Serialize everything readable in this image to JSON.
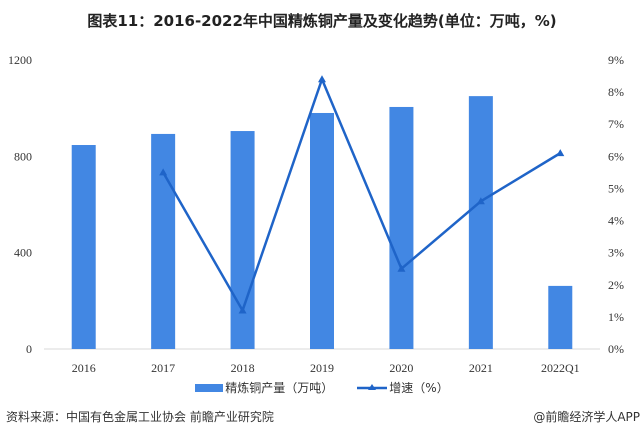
{
  "title": "图表11：2016-2022年中国精炼铜产量及变化趋势(单位：万吨，%)",
  "colors": {
    "bar": "#4287E3",
    "line": "#1F64C8",
    "axis": "#d9d9d9"
  },
  "legend": {
    "bar_label": "精炼铜产量（万吨）",
    "line_label": "增速（%）"
  },
  "footer": {
    "source": "资料来源：中国有色金属工业协会 前瞻产业研究院",
    "brand": "@前瞻经济学人APP"
  },
  "chart_data": {
    "type": "bar+line",
    "title": "图表11：2016-2022年中国精炼铜产量及变化趋势(单位：万吨，%)",
    "categories": [
      "2016",
      "2017",
      "2018",
      "2019",
      "2020",
      "2021",
      "2022Q1"
    ],
    "series": [
      {
        "name": "精炼铜产量（万吨）",
        "type": "bar",
        "axis": "left",
        "values": [
          847,
          893,
          905,
          980,
          1005,
          1050,
          262
        ]
      },
      {
        "name": "增速（%）",
        "type": "line",
        "axis": "right",
        "values": [
          null,
          5.5,
          1.2,
          8.4,
          2.5,
          4.6,
          6.1
        ]
      }
    ],
    "y_left": {
      "label": "",
      "ylim": [
        0,
        1200
      ],
      "ticks": [
        "0",
        "400",
        "800",
        "1200"
      ]
    },
    "y_right": {
      "label": "",
      "ylim": [
        0,
        9
      ],
      "ticks": [
        "0%",
        "1%",
        "2%",
        "3%",
        "4%",
        "5%",
        "6%",
        "7%",
        "8%",
        "9%"
      ]
    },
    "xlabel": "",
    "grid": false,
    "legend_position": "bottom"
  }
}
